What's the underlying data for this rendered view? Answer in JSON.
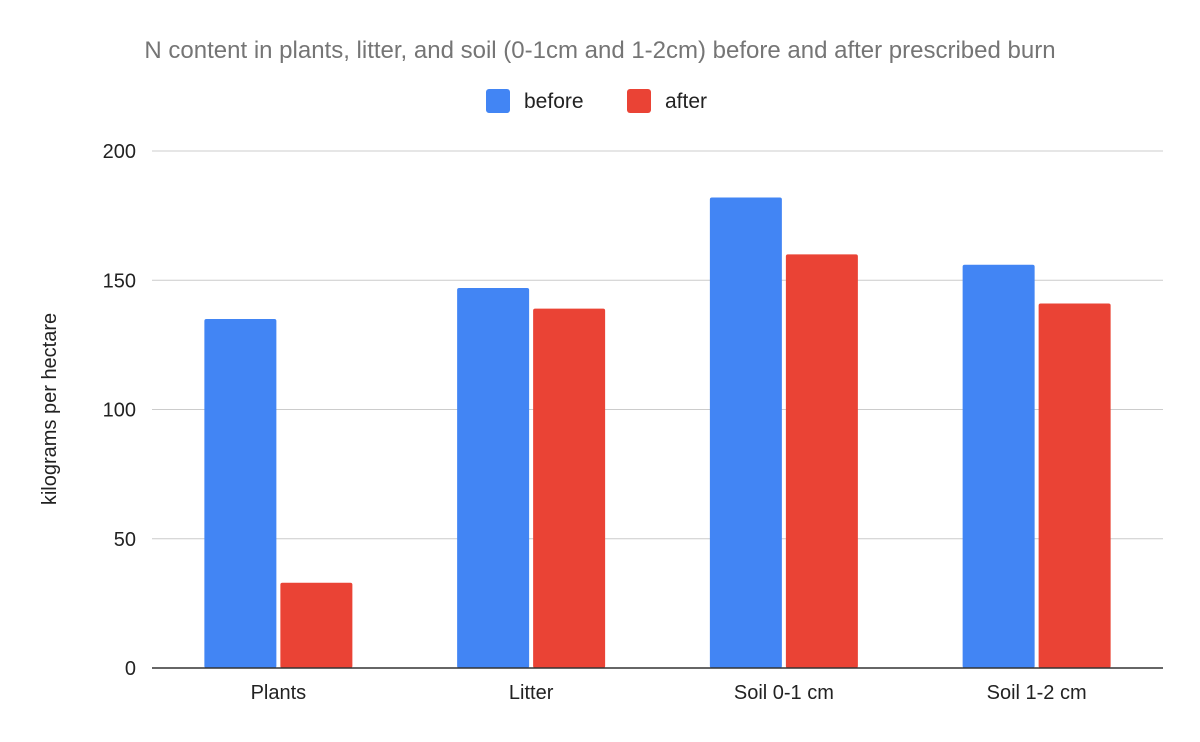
{
  "chart_data": {
    "type": "bar",
    "title": "N content in plants, litter, and soil (0-1cm and 1-2cm) before and after prescribed burn",
    "xlabel": "",
    "ylabel": "kilograms per hectare",
    "categories": [
      "Plants",
      "Litter",
      "Soil 0-1 cm",
      "Soil 1-2 cm"
    ],
    "series": [
      {
        "name": "before",
        "color": "#4285f4",
        "values": [
          135,
          147,
          182,
          156
        ]
      },
      {
        "name": "after",
        "color": "#ea4335",
        "values": [
          33,
          139,
          160,
          141
        ]
      }
    ],
    "ylim": [
      0,
      200
    ],
    "yticks": [
      "0",
      "50",
      "100",
      "150",
      "200"
    ],
    "grid": true,
    "legend_position": "top-center"
  }
}
